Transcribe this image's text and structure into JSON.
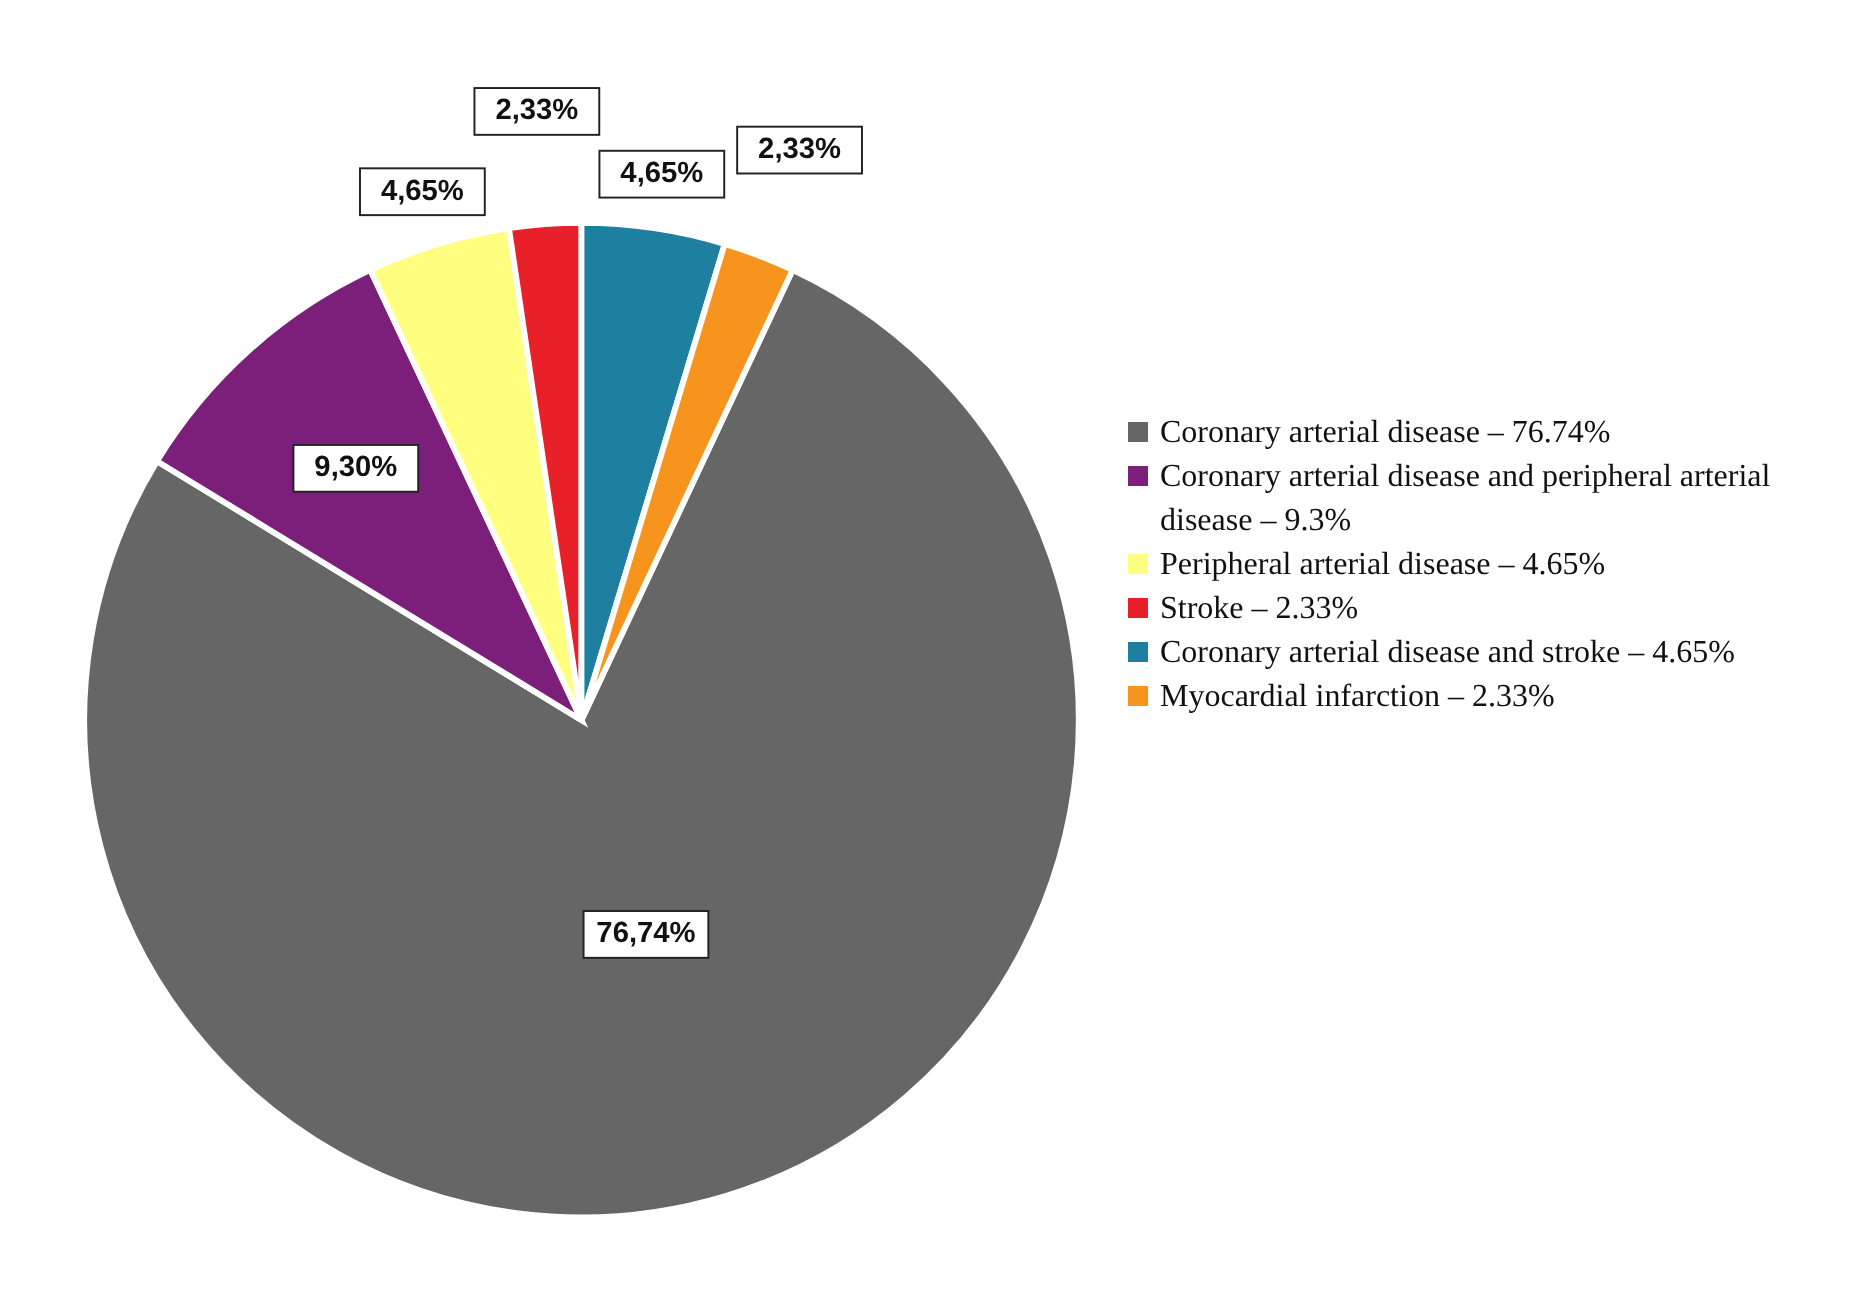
{
  "chart_data": {
    "type": "pie",
    "categories": [
      "Coronary arterial disease – 76.74%",
      "Coronary arterial disease and peripheral arterial disease – 9.3%",
      "Peripheral arterial disease – 4.65%",
      "Stroke – 2.33%",
      "Coronary arterial disease and stroke – 4.65%",
      "Myocardial infarction – 2.33%"
    ],
    "values": [
      76.74,
      9.3,
      4.65,
      2.33,
      4.65,
      2.33
    ],
    "colors": [
      "#666666",
      "#7b1f7b",
      "#ffff80",
      "#e8202a",
      "#1f7fa0",
      "#f7941d"
    ],
    "value_labels": [
      "76,74%",
      "9,30%",
      "4,65%",
      "2,33%",
      "4,65%",
      "2,33%"
    ],
    "legend": "right"
  }
}
